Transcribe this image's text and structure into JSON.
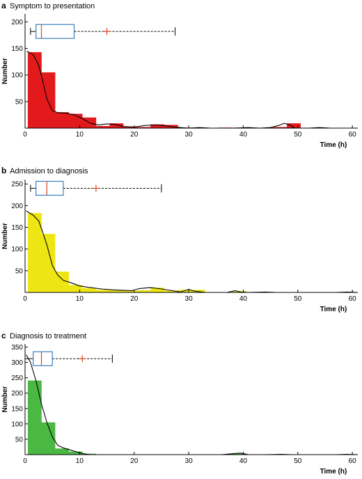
{
  "chart_data": [
    {
      "panel": "a",
      "type": "histogram",
      "title": "Symptom to presentation",
      "xlabel": "Time (h)",
      "ylabel": "Number",
      "xlim": [
        0,
        61
      ],
      "ylim": [
        0,
        215
      ],
      "xticks": [
        0,
        10,
        20,
        30,
        40,
        50,
        60
      ],
      "yticks": [
        50,
        100,
        150,
        200
      ],
      "color": "#e31a1c",
      "bin_width": 2.5,
      "bins": [
        {
          "x": 0.5,
          "value": 143
        },
        {
          "x": 3.0,
          "value": 105
        },
        {
          "x": 5.5,
          "value": 30
        },
        {
          "x": 8.0,
          "value": 27
        },
        {
          "x": 10.5,
          "value": 20
        },
        {
          "x": 13.0,
          "value": 4
        },
        {
          "x": 15.5,
          "value": 9
        },
        {
          "x": 18.0,
          "value": 3
        },
        {
          "x": 20.5,
          "value": 2
        },
        {
          "x": 23.0,
          "value": 7
        },
        {
          "x": 25.5,
          "value": 6
        },
        {
          "x": 28.0,
          "value": 1
        },
        {
          "x": 35.5,
          "value": 1
        },
        {
          "x": 45.5,
          "value": 2
        },
        {
          "x": 48.0,
          "value": 9
        }
      ],
      "density_curve": [
        [
          0.3,
          145
        ],
        [
          1.5,
          138
        ],
        [
          2.5,
          118
        ],
        [
          3.2,
          90
        ],
        [
          4,
          55
        ],
        [
          5,
          33
        ],
        [
          6,
          29
        ],
        [
          7.5,
          28
        ],
        [
          9,
          25
        ],
        [
          10.5,
          18
        ],
        [
          12,
          9
        ],
        [
          13.5,
          6
        ],
        [
          15,
          8
        ],
        [
          16.5,
          7
        ],
        [
          18,
          3
        ],
        [
          20,
          2
        ],
        [
          22,
          5
        ],
        [
          24,
          6
        ],
        [
          26,
          4
        ],
        [
          27.5,
          2
        ],
        [
          28.5,
          1
        ],
        [
          30,
          0
        ],
        [
          32,
          1
        ],
        [
          34,
          0
        ],
        [
          38,
          0
        ],
        [
          41,
          1
        ],
        [
          43,
          0
        ],
        [
          45,
          1
        ],
        [
          46.5,
          5
        ],
        [
          47.5,
          9
        ],
        [
          48.5,
          6
        ],
        [
          49.5,
          0
        ],
        [
          52,
          0
        ],
        [
          54,
          1
        ],
        [
          56,
          0
        ],
        [
          61,
          0
        ]
      ],
      "boxplot": {
        "min": 1,
        "q1": 2,
        "median": 3,
        "q3": 9,
        "max": 27.5,
        "mean": 15,
        "y_level": 182
      }
    },
    {
      "panel": "b",
      "type": "histogram",
      "title": "Admission to diagnosis",
      "xlabel": "Time (h)",
      "ylabel": "Number",
      "xlim": [
        0,
        61
      ],
      "ylim": [
        0,
        260
      ],
      "xticks": [
        0,
        10,
        20,
        30,
        40,
        50,
        60
      ],
      "yticks": [
        50,
        100,
        150,
        200,
        250
      ],
      "color": "#eee614",
      "bin_width": 2.5,
      "bins": [
        {
          "x": 0.5,
          "value": 183
        },
        {
          "x": 3.0,
          "value": 135
        },
        {
          "x": 5.5,
          "value": 48
        },
        {
          "x": 8.0,
          "value": 17
        },
        {
          "x": 10.5,
          "value": 10
        },
        {
          "x": 13.0,
          "value": 6
        },
        {
          "x": 15.5,
          "value": 5
        },
        {
          "x": 18.0,
          "value": 4
        },
        {
          "x": 20.5,
          "value": 5
        },
        {
          "x": 23.0,
          "value": 11
        },
        {
          "x": 25.5,
          "value": 4
        },
        {
          "x": 28.0,
          "value": 6
        },
        {
          "x": 30.5,
          "value": 6
        },
        {
          "x": 38.0,
          "value": 3
        }
      ],
      "density_curve": [
        [
          0.2,
          188
        ],
        [
          1.5,
          178
        ],
        [
          2.5,
          165
        ],
        [
          3.2,
          140
        ],
        [
          4,
          110
        ],
        [
          5,
          62
        ],
        [
          6,
          40
        ],
        [
          7,
          28
        ],
        [
          8.5,
          22
        ],
        [
          10,
          15
        ],
        [
          12,
          11
        ],
        [
          14,
          8
        ],
        [
          16,
          6
        ],
        [
          18,
          5
        ],
        [
          19.5,
          4
        ],
        [
          21,
          9
        ],
        [
          23,
          11
        ],
        [
          25,
          8
        ],
        [
          27,
          4
        ],
        [
          28.5,
          1
        ],
        [
          30,
          7
        ],
        [
          31,
          3
        ],
        [
          33,
          0
        ],
        [
          37,
          0
        ],
        [
          38.5,
          4
        ],
        [
          39.5,
          1
        ],
        [
          41,
          0
        ],
        [
          44,
          1
        ],
        [
          46,
          0
        ],
        [
          49,
          0
        ],
        [
          57,
          0
        ],
        [
          59,
          1
        ],
        [
          61,
          0
        ]
      ],
      "boxplot": {
        "min": 1,
        "q1": 2,
        "median": 4,
        "q3": 7,
        "max": 25,
        "mean": 13,
        "y_level": 240
      }
    },
    {
      "panel": "c",
      "type": "histogram",
      "title": "Diagnosis to treatment",
      "xlabel": "Time (h)",
      "ylabel": "Number",
      "xlim": [
        0,
        61
      ],
      "ylim": [
        0,
        360
      ],
      "xticks": [
        0,
        10,
        20,
        30,
        40,
        50,
        60
      ],
      "yticks": [
        50,
        100,
        150,
        200,
        250,
        300,
        350
      ],
      "color": "#4bb843",
      "bin_width": 2.5,
      "bins": [
        {
          "x": 0.5,
          "value": 241
        },
        {
          "x": 3.0,
          "value": 105
        },
        {
          "x": 5.5,
          "value": 20
        },
        {
          "x": 8.0,
          "value": 10
        },
        {
          "x": 10.5,
          "value": 3
        },
        {
          "x": 38.0,
          "value": 3
        }
      ],
      "density_curve": [
        [
          0.2,
          325
        ],
        [
          1,
          300
        ],
        [
          2,
          240
        ],
        [
          3,
          165
        ],
        [
          4,
          105
        ],
        [
          5,
          58
        ],
        [
          6,
          30
        ],
        [
          7,
          22
        ],
        [
          8.5,
          14
        ],
        [
          10,
          6
        ],
        [
          11,
          2
        ],
        [
          12,
          0
        ],
        [
          36,
          0
        ],
        [
          38,
          3
        ],
        [
          39.5,
          5
        ],
        [
          41,
          0
        ],
        [
          44,
          0
        ],
        [
          47,
          1
        ],
        [
          49,
          0
        ],
        [
          57,
          0
        ],
        [
          59,
          1
        ],
        [
          61,
          0
        ]
      ],
      "boxplot": {
        "min": 0,
        "q1": 1.5,
        "median": 3,
        "q3": 5,
        "max": 16,
        "mean": 10.5,
        "y_level": 312
      }
    }
  ],
  "style": {
    "box_color": "#3a7bbf",
    "median_color": "#e3431c",
    "mean_marker_color": "#e3431c",
    "whisker_color": "#000000",
    "curve_color": "#000000"
  }
}
